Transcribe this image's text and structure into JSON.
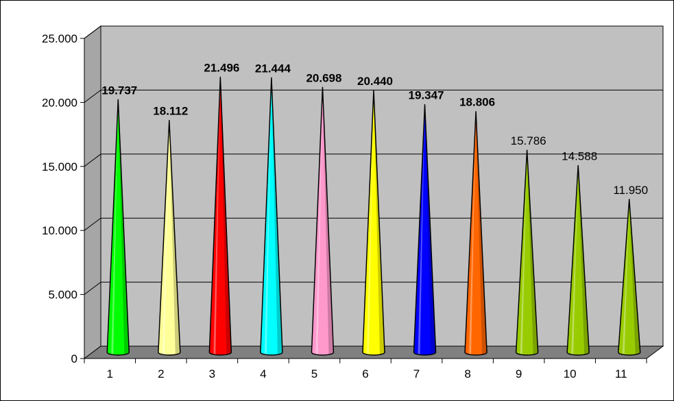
{
  "chart_data": {
    "type": "bar",
    "style": "3d-cone",
    "title": "",
    "xlabel": "",
    "ylabel": "",
    "categories": [
      "1",
      "2",
      "3",
      "4",
      "5",
      "6",
      "7",
      "8",
      "9",
      "10",
      "11"
    ],
    "values": [
      19737,
      18112,
      21496,
      21444,
      20698,
      20440,
      19347,
      18806,
      15786,
      14588,
      11950
    ],
    "value_labels": [
      "19.737",
      "18.112",
      "21.496",
      "21.444",
      "20.698",
      "20.440",
      "19.347",
      "18.806",
      "15.786",
      "14.588",
      "11.950"
    ],
    "value_label_bold": [
      true,
      true,
      true,
      true,
      true,
      true,
      true,
      true,
      false,
      false,
      false
    ],
    "colors": [
      "#00ff00",
      "#ffff99",
      "#ff0000",
      "#00ffff",
      "#ff99cc",
      "#ffff00",
      "#0000ff",
      "#ff6600",
      "#99cc00",
      "#99cc00",
      "#99cc00"
    ],
    "ylim": [
      0,
      25000
    ],
    "yticks": [
      0,
      5000,
      10000,
      15000,
      20000,
      25000
    ],
    "ytick_labels": [
      "0",
      "5.000",
      "10.000",
      "15.000",
      "20.000",
      "25.000"
    ],
    "grid": true,
    "legend": "none",
    "wall_color": "#c0c0c0",
    "floor_color": "#808080"
  }
}
